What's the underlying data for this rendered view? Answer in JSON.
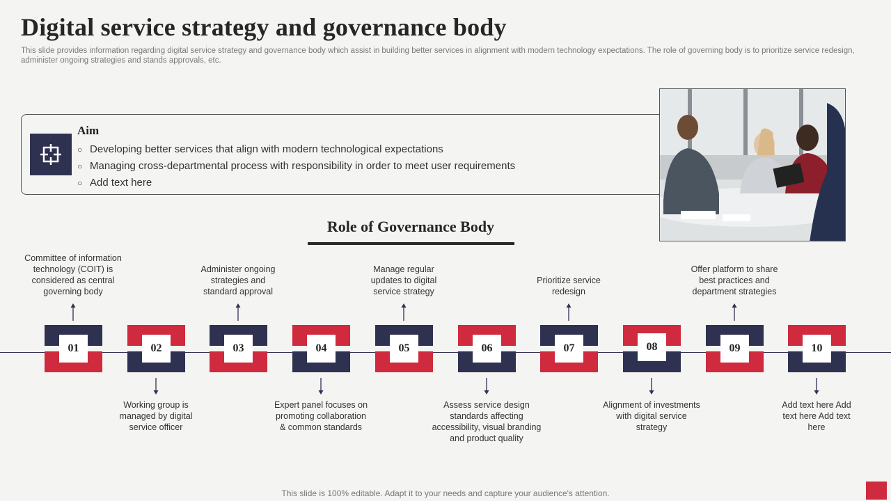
{
  "header": {
    "title": "Digital service strategy and governance body",
    "subtitle": "This slide provides information regarding digital service strategy and governance body which assist in building better services in alignment with modern technology expectations. The role of governing body is to prioritize service redesign, administer ongoing strategies and stands approvals, etc."
  },
  "aim": {
    "icon": "target-icon",
    "title": "Aim",
    "items": [
      "Developing better services that align with modern technological expectations",
      "Managing cross-departmental process with responsibility in order to meet user requirements",
      "Add text here"
    ]
  },
  "photo": {
    "icon": "business-meeting-photo"
  },
  "governance": {
    "title": "Role of Governance Body",
    "steps": [
      {
        "num": "01",
        "text": "Committee of information technology (COIT) is considered as central governing body"
      },
      {
        "num": "02",
        "text": "Working group is managed by digital service officer"
      },
      {
        "num": "03",
        "text": "Administer ongoing strategies and standard approval"
      },
      {
        "num": "04",
        "text": "Expert panel focuses on promoting collaboration & common standards"
      },
      {
        "num": "05",
        "text": "Manage regular updates to digital service strategy"
      },
      {
        "num": "06",
        "text": "Assess service design standards affecting accessibility, visual branding and product quality"
      },
      {
        "num": "07",
        "text": "Prioritize service redesign"
      },
      {
        "num": "08",
        "text": "Alignment of investments with digital service strategy"
      },
      {
        "num": "09",
        "text": "Offer platform to share best practices and department strategies"
      },
      {
        "num": "10",
        "text": "Add text here Add text here Add text here"
      }
    ]
  },
  "footer": {
    "text": "This slide is 100% editable. Adapt it to your needs and capture your audience's attention."
  },
  "colors": {
    "navy": "#2f3150",
    "red": "#cf2a3d",
    "background": "#f4f4f2"
  }
}
